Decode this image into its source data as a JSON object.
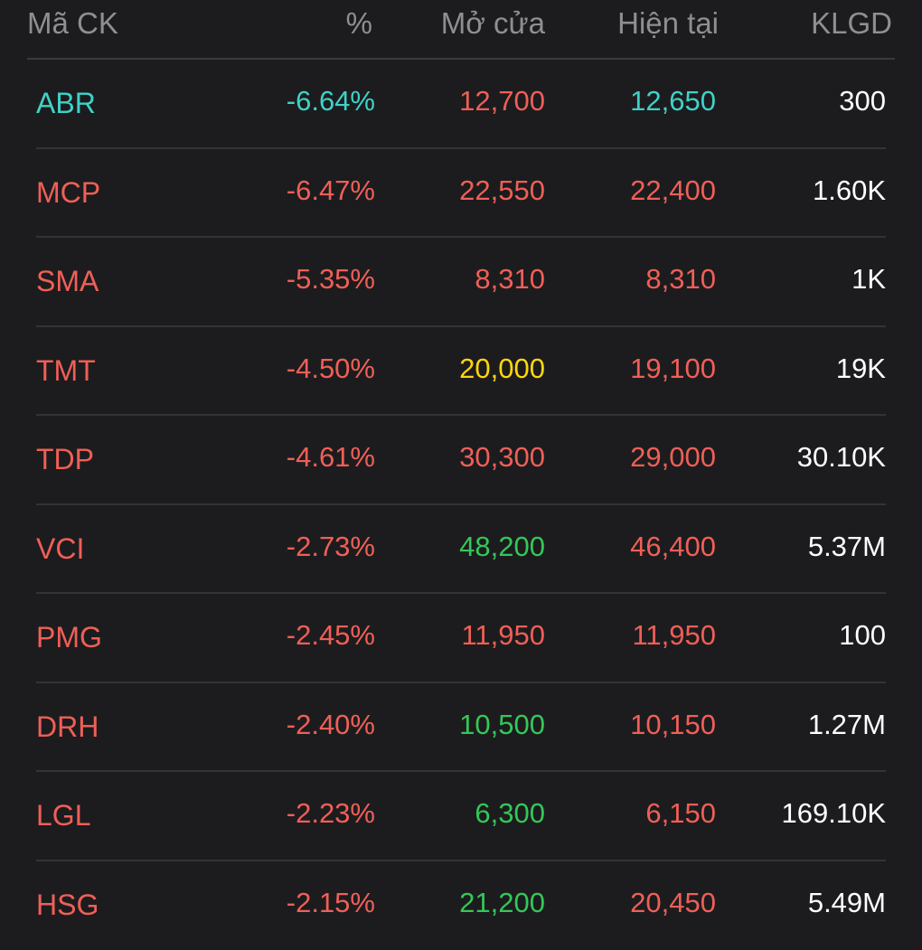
{
  "colors": {
    "background": "#1c1c1e",
    "header_text": "#8e8e93",
    "red": "#f05f57",
    "teal": "#3fd2c7",
    "green": "#34c759",
    "yellow": "#ffd60a",
    "white": "#ffffff"
  },
  "header": {
    "symbol": "Mã CK",
    "percent": "%",
    "open": "Mở cửa",
    "current": "Hiện tại",
    "volume": "KLGD"
  },
  "rows": [
    {
      "symbol": "ABR",
      "percent": "-6.64%",
      "open": "12,700",
      "current": "12,650",
      "volume": "300",
      "symbol_color": "teal",
      "percent_color": "teal",
      "open_color": "red",
      "current_color": "teal"
    },
    {
      "symbol": "MCP",
      "percent": "-6.47%",
      "open": "22,550",
      "current": "22,400",
      "volume": "1.60K",
      "symbol_color": "red",
      "percent_color": "red",
      "open_color": "red",
      "current_color": "red"
    },
    {
      "symbol": "SMA",
      "percent": "-5.35%",
      "open": "8,310",
      "current": "8,310",
      "volume": "1K",
      "symbol_color": "red",
      "percent_color": "red",
      "open_color": "red",
      "current_color": "red"
    },
    {
      "symbol": "TMT",
      "percent": "-4.50%",
      "open": "20,000",
      "current": "19,100",
      "volume": "19K",
      "symbol_color": "red",
      "percent_color": "red",
      "open_color": "yellow",
      "current_color": "red"
    },
    {
      "symbol": "TDP",
      "percent": "-4.61%",
      "open": "30,300",
      "current": "29,000",
      "volume": "30.10K",
      "symbol_color": "red",
      "percent_color": "red",
      "open_color": "red",
      "current_color": "red"
    },
    {
      "symbol": "VCI",
      "percent": "-2.73%",
      "open": "48,200",
      "current": "46,400",
      "volume": "5.37M",
      "symbol_color": "red",
      "percent_color": "red",
      "open_color": "green",
      "current_color": "red"
    },
    {
      "symbol": "PMG",
      "percent": "-2.45%",
      "open": "11,950",
      "current": "11,950",
      "volume": "100",
      "symbol_color": "red",
      "percent_color": "red",
      "open_color": "red",
      "current_color": "red"
    },
    {
      "symbol": "DRH",
      "percent": "-2.40%",
      "open": "10,500",
      "current": "10,150",
      "volume": "1.27M",
      "symbol_color": "red",
      "percent_color": "red",
      "open_color": "green",
      "current_color": "red"
    },
    {
      "symbol": "LGL",
      "percent": "-2.23%",
      "open": "6,300",
      "current": "6,150",
      "volume": "169.10K",
      "symbol_color": "red",
      "percent_color": "red",
      "open_color": "green",
      "current_color": "red"
    },
    {
      "symbol": "HSG",
      "percent": "-2.15%",
      "open": "21,200",
      "current": "20,450",
      "volume": "5.49M",
      "symbol_color": "red",
      "percent_color": "red",
      "open_color": "green",
      "current_color": "red"
    }
  ]
}
